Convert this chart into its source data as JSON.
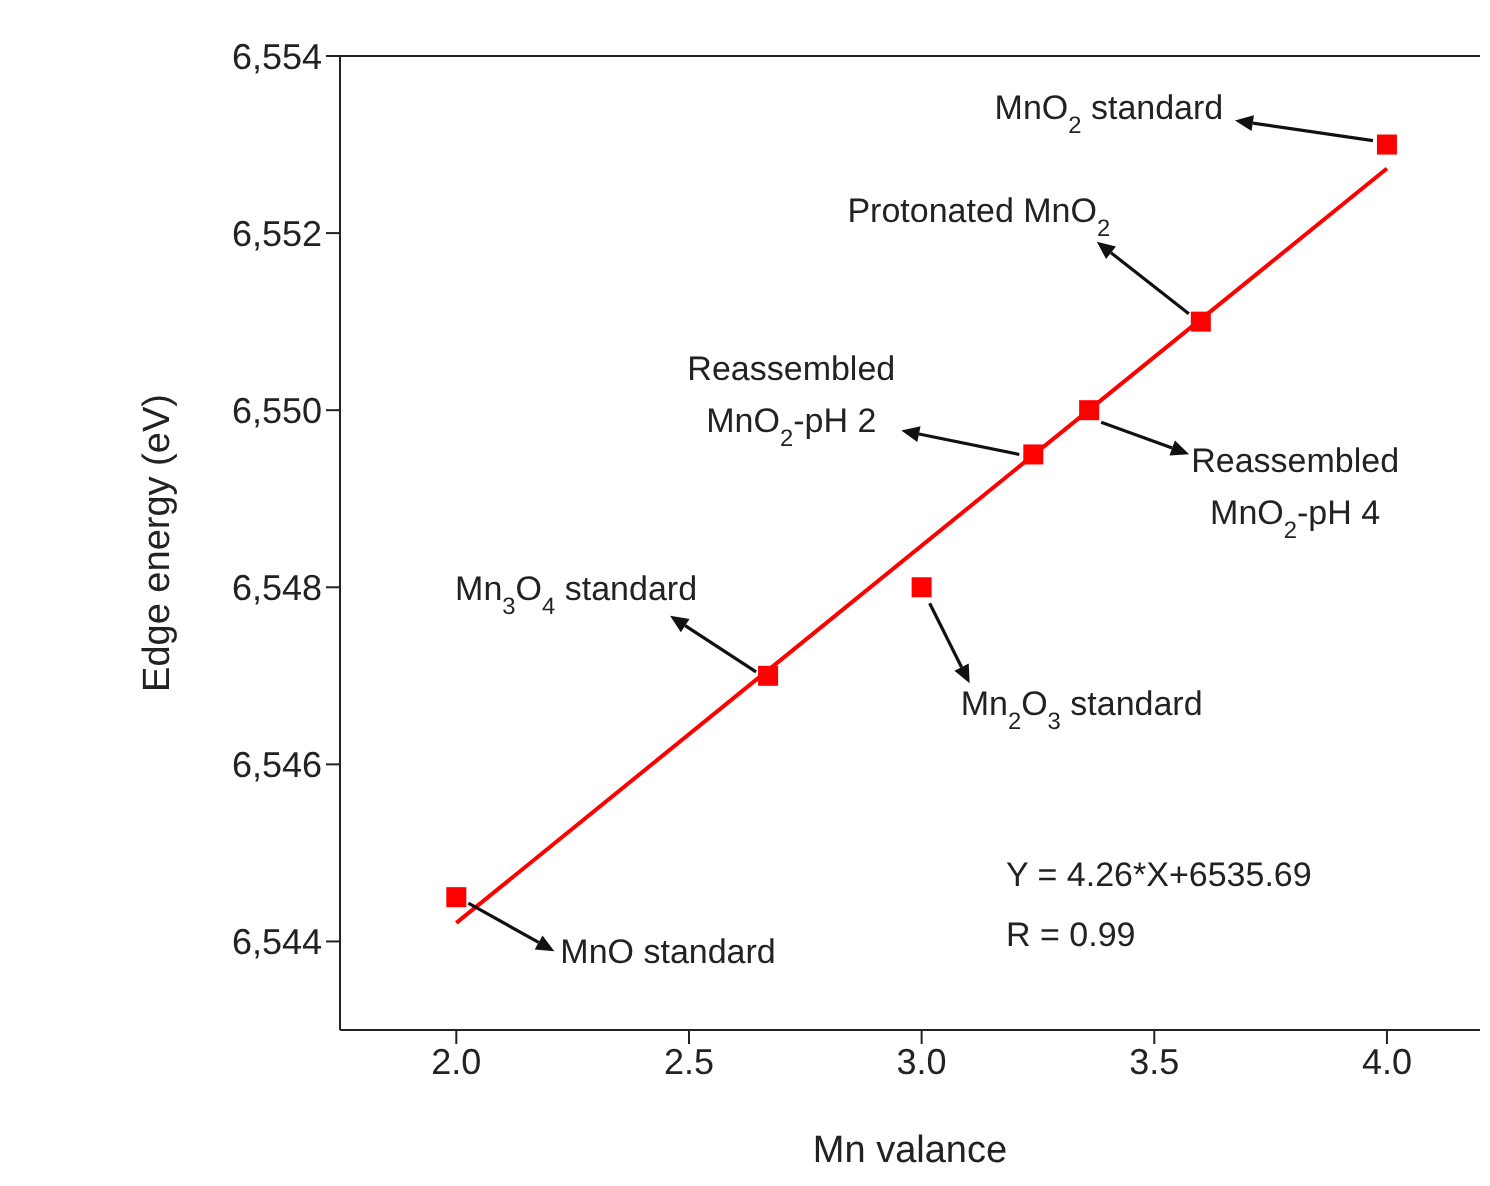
{
  "chart_data": {
    "type": "scatter",
    "xlabel": "Mn valance",
    "ylabel": "Edge energy (eV)",
    "xlim": [
      1.75,
      4.2
    ],
    "xticks": [
      {
        "value": 2,
        "label": "2.0"
      },
      {
        "value": 2.5,
        "label": "2.5"
      },
      {
        "value": 3,
        "label": "3.0"
      },
      {
        "value": 3.5,
        "label": "3.5"
      },
      {
        "value": 4,
        "label": "4.0"
      }
    ],
    "ylim": [
      6543,
      6554
    ],
    "yticks": [
      {
        "value": 6544,
        "label": "6,544"
      },
      {
        "value": 6546,
        "label": "6,546"
      },
      {
        "value": 6548,
        "label": "6,548"
      },
      {
        "value": 6550,
        "label": "6,550"
      },
      {
        "value": 6552,
        "label": "6,552"
      },
      {
        "value": 6554,
        "label": "6,554"
      }
    ],
    "grid": false,
    "legend": false,
    "series": [
      {
        "marker": "square",
        "color": "#ff0000",
        "x": [
          2.0,
          2.67,
          3.0,
          3.24,
          3.36,
          3.6,
          4.0
        ],
        "values": [
          6544.5,
          6547,
          6548,
          6549.5,
          6550,
          6551,
          6553
        ]
      },
      {
        "type": "line",
        "marker": "none",
        "color": "#ff0000",
        "x": [
          2.0,
          4.0
        ],
        "values": [
          6544.21,
          6552.73
        ]
      }
    ],
    "annotations": [
      {
        "text": "MnO standard",
        "x": 2.0,
        "y": 6544.5
      },
      {
        "text": "Mn$_{3}$O$_{4}$ standard",
        "x": 2.67,
        "y": 6547
      },
      {
        "text": "Mn$_{2}$O$_{3}$ standard",
        "x": 3.0,
        "y": 6548
      },
      {
        "text": "Reassembled\nMnO$_{2}$-pH 2",
        "x": 3.24,
        "y": 6549.5
      },
      {
        "text": "Reassembled\nMnO$_{2}$-pH 4",
        "x": 3.36,
        "y": 6550
      },
      {
        "text": "Protonated MnO$_{2}$",
        "x": 3.6,
        "y": 6551
      },
      {
        "text": "MnO$_{2}$ standard",
        "x": 4.0,
        "y": 6553
      },
      "Y = 4.26*X+6535.69",
      "R = 0.99"
    ]
  }
}
